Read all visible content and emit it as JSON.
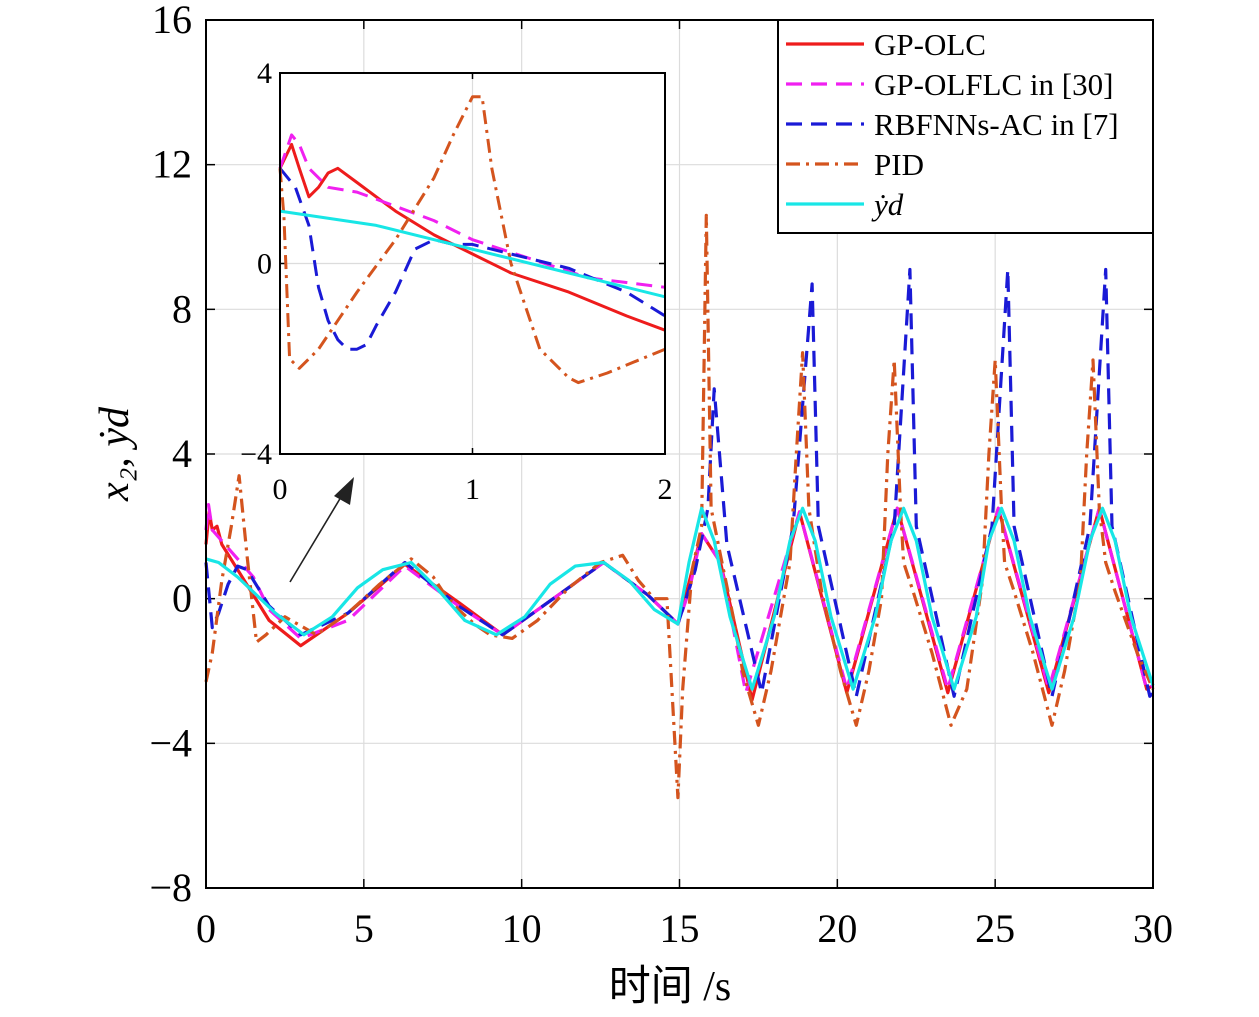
{
  "chart_data": {
    "type": "line",
    "xlabel": "时间 /s",
    "ylabel": "x₂, ẏd",
    "xlim": [
      0,
      30
    ],
    "ylim": [
      -8,
      16
    ],
    "xticks": [
      "0",
      "5",
      "10",
      "15",
      "20",
      "25",
      "30"
    ],
    "yticks": [
      "−8",
      "−4",
      "0",
      "4",
      "8",
      "12",
      "16"
    ],
    "grid": true,
    "legend_position": "top-right",
    "legend": [
      "GP-OLC",
      "GP-OLFLC in [30]",
      "RBFNNs-AC in [7]",
      "PID",
      "ẏd"
    ],
    "series": [
      {
        "name": "GP-OLC",
        "color": "#ee1c1c",
        "dash": "solid",
        "x": [
          0,
          0.1,
          0.2,
          0.35,
          0.5,
          1,
          1.5,
          2,
          3,
          4.5,
          6.3,
          8,
          9.4,
          11,
          12.6,
          14,
          14.95,
          15.2,
          15.7,
          16.3,
          17.3,
          18.8,
          20.3,
          21.9,
          23.5,
          25.1,
          26.7,
          28.3,
          29.8,
          30
        ],
        "y": [
          1.5,
          2.4,
          1.9,
          2.0,
          1.5,
          0.8,
          0.1,
          -0.6,
          -1.3,
          -0.4,
          0.95,
          -0.1,
          -1.0,
          0.0,
          1.0,
          0.1,
          -0.7,
          0.1,
          1.8,
          1.0,
          -2.8,
          2.4,
          -2.6,
          2.5,
          -2.6,
          2.5,
          -2.6,
          2.5,
          -2.5,
          -2.4
        ]
      },
      {
        "name": "GP-OLFLC in [30]",
        "color": "#f020f0",
        "dash": "dashed",
        "x": [
          0,
          0.08,
          0.2,
          0.5,
          1,
          1.5,
          2,
          3,
          4.5,
          6.3,
          8,
          9.4,
          11,
          12.6,
          14,
          14.95,
          15.3,
          15.7,
          16.3,
          17.1,
          18.8,
          20.3,
          21.9,
          23.5,
          25.1,
          26.7,
          28.3,
          29.8,
          30
        ],
        "y": [
          1.9,
          2.6,
          1.9,
          1.6,
          1.1,
          0.6,
          -0.3,
          -1.1,
          -0.6,
          0.9,
          -0.2,
          -1.0,
          0.0,
          1.0,
          0.1,
          -0.7,
          0.2,
          1.8,
          1.0,
          -2.6,
          2.4,
          -2.5,
          2.5,
          -2.5,
          2.5,
          -2.5,
          2.5,
          -2.5,
          -2.4
        ]
      },
      {
        "name": "RBFNNs-AC in [7]",
        "color": "#1a1ad6",
        "dash": "dashed",
        "x": [
          0,
          0.2,
          0.4,
          0.7,
          1.0,
          1.3,
          2,
          3,
          4.5,
          6.3,
          8,
          9.4,
          11,
          12.6,
          14,
          14.95,
          15.5,
          15.9,
          16.1,
          16.5,
          17.6,
          18.6,
          19.2,
          19.4,
          20.6,
          21.8,
          22.3,
          22.5,
          23.7,
          24.9,
          25.4,
          25.6,
          26.8,
          28,
          28.5,
          28.7,
          29.9,
          30
        ],
        "y": [
          1.0,
          -0.8,
          -0.4,
          0.4,
          0.9,
          0.8,
          -0.2,
          -1.0,
          -0.4,
          1.0,
          -0.2,
          -1.0,
          0.0,
          1.0,
          0.1,
          -0.7,
          0.8,
          2.5,
          5.8,
          1.5,
          -2.6,
          2.0,
          8.7,
          2.0,
          -2.7,
          2.0,
          9.1,
          2.0,
          -2.7,
          2.0,
          9.1,
          2.0,
          -2.7,
          2.0,
          9.1,
          2.0,
          -2.7,
          -2.6
        ]
      },
      {
        "name": "PID",
        "color": "#d4541e",
        "dash": "dashdot",
        "x": [
          0,
          0.2,
          0.5,
          0.8,
          1.05,
          1.3,
          1.6,
          1.9,
          2.5,
          3.5,
          4.5,
          5.5,
          6.5,
          7.2,
          7.5,
          8,
          8.5,
          9,
          9.7,
          10.5,
          11.5,
          12.5,
          13.2,
          13.7,
          14.2,
          14.6,
          14.95,
          15.1,
          15.4,
          15.7,
          15.85,
          16.0,
          16.3,
          16.7,
          17.0,
          17.5,
          17.9,
          18.5,
          18.7,
          18.9,
          19.1,
          19.5,
          20.1,
          20.6,
          21.0,
          21.4,
          21.6,
          21.8,
          22.0,
          22.1,
          22.4,
          23.0,
          23.6,
          24.1,
          24.6,
          24.8,
          25.0,
          25.2,
          25.3,
          25.6,
          26.2,
          26.8,
          27.2,
          27.7,
          27.9,
          28.1,
          28.3,
          28.5,
          28.8,
          29.5,
          30
        ],
        "y": [
          -2.3,
          -1.5,
          0.5,
          2.0,
          3.4,
          1.2,
          -1.2,
          -1.0,
          -0.5,
          -1.0,
          -0.4,
          0.4,
          1.1,
          0.6,
          0.2,
          -0.3,
          -0.7,
          -1.0,
          -1.1,
          -0.6,
          0.3,
          1.0,
          1.2,
          0.5,
          0.0,
          0.0,
          -5.5,
          -2.5,
          0.8,
          2.0,
          10.6,
          2.5,
          1.2,
          -0.5,
          -2.0,
          -3.5,
          -2.0,
          1.0,
          4.0,
          6.8,
          2.5,
          0.2,
          -2.0,
          -3.5,
          -2.0,
          0.0,
          4.0,
          6.6,
          2.5,
          1.0,
          0.2,
          -1.5,
          -3.5,
          -2.5,
          0.5,
          4.0,
          6.6,
          2.5,
          1.0,
          0.2,
          -1.5,
          -3.5,
          -2.0,
          0.5,
          4.0,
          6.6,
          2.5,
          1.0,
          0.2,
          -1.5,
          -2.5
        ]
      },
      {
        "name": "ẏd",
        "color": "#18e6e6",
        "dash": "solid",
        "x": [
          0,
          0.4,
          1,
          1.6,
          2.2,
          3.1,
          4,
          4.8,
          5.6,
          6.5,
          7.3,
          8.2,
          9.2,
          10.1,
          10.9,
          11.7,
          12.6,
          13.4,
          14.2,
          14.95,
          15.3,
          15.7,
          16.1,
          16.6,
          17.3,
          18.0,
          18.5,
          18.9,
          19.3,
          19.8,
          20.5,
          21.2,
          21.7,
          22.1,
          22.5,
          23.0,
          23.7,
          24.4,
          24.8,
          25.2,
          25.6,
          26.1,
          26.8,
          27.5,
          28.0,
          28.4,
          28.8,
          29.3,
          30
        ],
        "y": [
          1.1,
          1.0,
          0.6,
          0.1,
          -0.4,
          -1.0,
          -0.5,
          0.3,
          0.8,
          1.0,
          0.3,
          -0.6,
          -1.0,
          -0.5,
          0.4,
          0.9,
          1.0,
          0.5,
          -0.3,
          -0.7,
          1.0,
          2.5,
          1.6,
          -0.5,
          -2.5,
          -0.5,
          1.6,
          2.5,
          1.6,
          -0.5,
          -2.5,
          -0.5,
          1.6,
          2.5,
          1.6,
          -0.5,
          -2.5,
          -0.5,
          1.6,
          2.5,
          1.6,
          -0.5,
          -2.5,
          -0.5,
          1.6,
          2.5,
          1.6,
          -0.5,
          -2.4
        ]
      }
    ],
    "inset": {
      "xlim": [
        0,
        2
      ],
      "ylim": [
        -4,
        4
      ],
      "xticks": [
        "0",
        "1",
        "2"
      ],
      "yticks": [
        "−4",
        "0",
        "4"
      ],
      "series": [
        {
          "name": "GP-OLC",
          "color": "#ee1c1c",
          "dash": "solid",
          "x": [
            0,
            0.06,
            0.1,
            0.15,
            0.2,
            0.25,
            0.3,
            0.4,
            0.6,
            0.8,
            1.0,
            1.2,
            1.5,
            1.8,
            2.0
          ],
          "y": [
            2.0,
            2.5,
            2.0,
            1.4,
            1.6,
            1.9,
            2.0,
            1.7,
            1.1,
            0.6,
            0.2,
            -0.2,
            -0.6,
            -1.1,
            -1.4
          ]
        },
        {
          "name": "GP-OLFLC in [30]",
          "color": "#f020f0",
          "dash": "dashed",
          "x": [
            0,
            0.06,
            0.1,
            0.15,
            0.25,
            0.4,
            0.6,
            0.8,
            1.0,
            1.3,
            1.6,
            2.0
          ],
          "y": [
            2.0,
            2.7,
            2.5,
            2.0,
            1.6,
            1.5,
            1.2,
            0.9,
            0.5,
            0.1,
            -0.3,
            -0.5
          ]
        },
        {
          "name": "RBFNNs-AC in [7]",
          "color": "#1a1ad6",
          "dash": "dashed",
          "x": [
            0,
            0.08,
            0.15,
            0.2,
            0.25,
            0.3,
            0.35,
            0.4,
            0.45,
            0.5,
            0.6,
            0.7,
            0.8,
            0.9,
            1.0,
            1.2,
            1.5,
            1.8,
            2.0
          ],
          "y": [
            2.0,
            1.6,
            0.8,
            -0.5,
            -1.2,
            -1.6,
            -1.8,
            -1.8,
            -1.7,
            -1.3,
            -0.6,
            0.3,
            0.5,
            0.4,
            0.4,
            0.2,
            -0.1,
            -0.6,
            -1.1
          ]
        },
        {
          "name": "PID",
          "color": "#d4541e",
          "dash": "dashdot",
          "x": [
            0,
            0.02,
            0.05,
            0.1,
            0.2,
            0.4,
            0.6,
            0.8,
            0.9,
            1.0,
            1.05,
            1.1,
            1.2,
            1.35,
            1.5,
            1.55,
            1.7,
            2.0
          ],
          "y": [
            2.0,
            1.0,
            -2.0,
            -2.2,
            -1.8,
            -0.6,
            0.5,
            1.8,
            2.7,
            3.5,
            3.5,
            2.0,
            0.0,
            -1.8,
            -2.4,
            -2.5,
            -2.3,
            -1.8
          ]
        },
        {
          "name": "ẏd",
          "color": "#18e6e6",
          "dash": "solid",
          "x": [
            0,
            0.5,
            1.0,
            1.5,
            2.0
          ],
          "y": [
            1.1,
            0.8,
            0.3,
            -0.2,
            -0.7
          ]
        }
      ]
    }
  }
}
